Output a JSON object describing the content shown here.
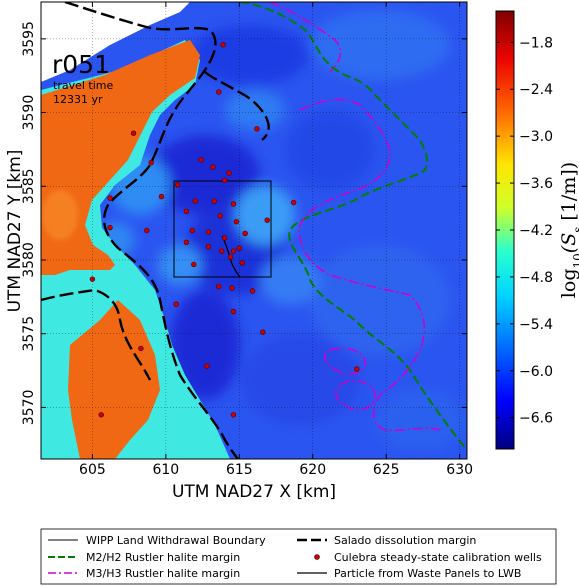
{
  "map": {
    "run_label": "r051",
    "travel_time_label": "travel time",
    "travel_time_value": "12331 yr",
    "xlabel": "UTM NAD27 X [km]",
    "ylabel": "UTM NAD27 Y [km]",
    "x_ticks": [
      "605",
      "610",
      "615",
      "620",
      "625",
      "630"
    ],
    "y_ticks": [
      "3570",
      "3575",
      "3580",
      "3585",
      "3590",
      "3595"
    ],
    "xlim": [
      601.5,
      630.5
    ],
    "ylim": [
      3566.5,
      3597.5
    ]
  },
  "colorbar": {
    "label": "log10(Ss [1/m])",
    "label_main": "log",
    "label_sub": "10",
    "label_rest": "(S",
    "label_sub2": "s",
    "label_tail": "  [1/m])",
    "ticks": [
      "−1.8",
      "−2.4",
      "−3.0",
      "−3.6",
      "−4.2",
      "−4.8",
      "−5.4",
      "−6.0",
      "−6.6"
    ],
    "range": [
      -7.0,
      -1.4
    ],
    "colors": [
      "#00007f",
      "#0000ff",
      "#007fff",
      "#00ffff",
      "#7fff7f",
      "#ffff00",
      "#ff7f00",
      "#ff0000",
      "#7f0000"
    ]
  },
  "legend": {
    "items": [
      {
        "label": "WIPP Land Withdrawal Boundary",
        "color": "#000000",
        "style": "solid-thin"
      },
      {
        "label": "Salado dissolution margin",
        "color": "#000000",
        "style": "dashed-thick"
      },
      {
        "label": "M2/H2 Rustler halite margin",
        "color": "#008000",
        "style": "dashed"
      },
      {
        "label": "Culebra steady-state calibration wells",
        "color": "#cc0000",
        "style": "dot"
      },
      {
        "label": "M3/H3 Rustler halite margin",
        "color": "#cc00cc",
        "style": "dashdot"
      },
      {
        "label": "Particle from Waste Panels to LWB",
        "color": "#000000",
        "style": "solid"
      }
    ]
  },
  "field_colors": {
    "background": "#2b55f0",
    "dark_patch": "#1a2bd6",
    "light_patch": "#2f8cf4",
    "cyan": "#40e8e2",
    "orange": "#f06814",
    "orange_light": "#f58020",
    "no_data": "#ffffff"
  },
  "wells": [
    [
      613.9,
      3594.6
    ],
    [
      613.6,
      3591.4
    ],
    [
      616.2,
      3588.9
    ],
    [
      607.8,
      3588.6
    ],
    [
      609.0,
      3586.6
    ],
    [
      612.4,
      3586.8
    ],
    [
      613.2,
      3586.3
    ],
    [
      614.3,
      3585.9
    ],
    [
      610.8,
      3585.1
    ],
    [
      614.0,
      3585.4
    ],
    [
      606.2,
      3584.2
    ],
    [
      609.7,
      3584.3
    ],
    [
      612.0,
      3584.0
    ],
    [
      613.3,
      3584.0
    ],
    [
      614.6,
      3583.8
    ],
    [
      618.7,
      3583.9
    ],
    [
      611.4,
      3583.3
    ],
    [
      613.7,
      3583.0
    ],
    [
      614.8,
      3582.6
    ],
    [
      616.9,
      3582.7
    ],
    [
      606.2,
      3582.2
    ],
    [
      608.7,
      3582.0
    ],
    [
      611.8,
      3582.0
    ],
    [
      612.9,
      3581.9
    ],
    [
      614.0,
      3581.5
    ],
    [
      615.4,
      3581.8
    ],
    [
      611.4,
      3581.2
    ],
    [
      612.9,
      3580.9
    ],
    [
      613.8,
      3580.6
    ],
    [
      614.6,
      3580.6
    ],
    [
      615.0,
      3580.8
    ],
    [
      614.4,
      3580.2
    ],
    [
      611.9,
      3579.7
    ],
    [
      615.2,
      3579.8
    ],
    [
      605.0,
      3578.7
    ],
    [
      613.6,
      3578.2
    ],
    [
      614.5,
      3578.1
    ],
    [
      615.9,
      3577.9
    ],
    [
      610.7,
      3577.0
    ],
    [
      614.6,
      3576.5
    ],
    [
      616.6,
      3575.1
    ],
    [
      608.3,
      3574.0
    ],
    [
      612.8,
      3572.8
    ],
    [
      623.0,
      3572.6
    ],
    [
      605.6,
      3569.5
    ],
    [
      614.6,
      3569.5
    ]
  ]
}
